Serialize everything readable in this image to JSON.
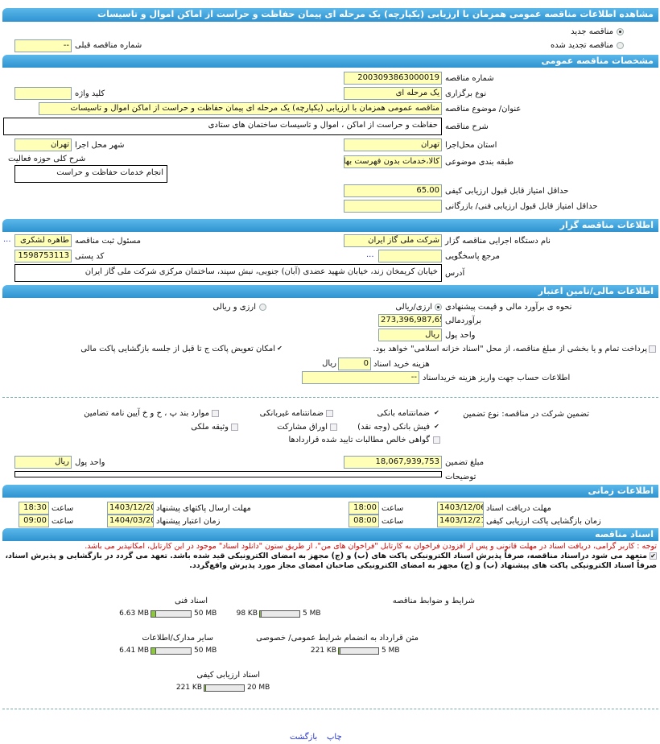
{
  "title": "مشاهده اطلاعات مناقصه عمومی همزمان با ارزیابی (یکپارچه) یک مرحله ای پیمان حفاظت و حراست از اماکن اموال و تاسیسات",
  "tender_kind": {
    "new": "مناقصه جدید",
    "renewed": "مناقصه تجدید شده",
    "selected": "new",
    "prev_number_label": "شماره مناقصه قبلی",
    "prev_number": "--"
  },
  "general": {
    "header": "مشخصات مناقصه عمومی",
    "number_label": "شماره مناقصه",
    "number": "2003093863000019",
    "type_label": "نوع برگزاری",
    "type": "یک مرحله ای",
    "keyword_label": "کلید واژه",
    "keyword": "",
    "subject_label": "عنوان/ موضوع مناقصه",
    "subject": "مناقصه عمومی همزمان با ارزیابی (یکپارچه) یک مرحله ای پیمان حفاظت و حراست از اماکن اموال و تاسیسات",
    "description_label": "شرح مناقصه",
    "description": "حفاظت و حراست از اماکن ، اموال و تاسیسات ساختمان های ستادی",
    "province_label": "استان محل‌اجرا",
    "province": "تهران",
    "city_label": "شهر محل اجرا",
    "city": "تهران",
    "category_label": "طبقه بندی موضوعی",
    "category": "کالا،خدمات بدون فهرست بها",
    "activity_label": "شرح کلی حوزه فعالیت",
    "activity": "انجام خدمات حفاظت و حراست",
    "min_quality_label": "حداقل امتیاز قابل قبول ارزیابی کیفی",
    "min_quality": "65.00",
    "min_tech_label": "حداقل امتیاز قابل قبول ارزیابی فنی/ بازرگانی",
    "min_tech": ""
  },
  "organizer": {
    "header": "اطلاعات مناقصه گزار",
    "org_label": "نام دستگاه اجرایی مناقصه گزار",
    "org": "شرکت ملی گاز ایران",
    "registrar_label": "مسئول ثبت مناقصه",
    "registrar": "طاهره لشکری",
    "ref_label": "مرجع پاسخگویی",
    "ref": "",
    "postal_label": "کد پستی",
    "postal": "1598753113",
    "address_label": "آدرس",
    "address": "خیابان کریمخان زند، خیابان شهید عضدی (آبان) جنوبی، نبش سپند، ساختمان مرکزی شرکت ملی گاز ایران",
    "more": "..."
  },
  "finance": {
    "header": "اطلاعات مالی/تامین اعتبار",
    "method_label": "نحوه ی برآورد مالی و قیمت پیشنهادی",
    "opt_rial": "ارزی/ریالی",
    "opt_both": "ارزی و ریالی",
    "selected": "opt_rial",
    "estimate_label": "برآوردمالی",
    "estimate": "273,396,987,650",
    "currency_label": "واحد پول",
    "currency": "ریال",
    "treasury": "پرداخت تمام و یا بخشی از مبلغ مناقصه، از محل \"اسناد خزانه اسلامی\" خواهد بود.",
    "treasury_checked": false,
    "swap": "امکان تعویض پاکت ج تا قبل از جلسه بازگشایی پاکت مالی",
    "swap_checked": true,
    "doc_cost_label": "هزینه خرید اسناد",
    "doc_cost": "0",
    "doc_cost_unit": "ریال",
    "account_label": "اطلاعات حساب جهت واریز هزینه خریداسناد",
    "account": "--"
  },
  "guarantee": {
    "label": "تضمین شرکت در مناقصه:   نوع تضمین",
    "options": [
      {
        "label": "ضمانتنامه بانکی",
        "checked": true
      },
      {
        "label": "ضمانتنامه غیربانکی",
        "checked": false
      },
      {
        "label": "موارد بند پ ، ح و خ آیین نامه تضامین",
        "checked": false
      },
      {
        "label": "فیش بانکی (وجه نقد)",
        "checked": true
      },
      {
        "label": "اوراق مشارکت",
        "checked": false
      },
      {
        "label": "وثیقه ملکی",
        "checked": false
      },
      {
        "label": "گواهی خالص مطالبات تایید شده قراردادها",
        "checked": false
      }
    ],
    "amount_label": "مبلغ تضمین",
    "amount": "18,067,939,753",
    "currency_label": "واحد پول",
    "currency": "ریال",
    "notes_label": "توضیحات",
    "notes": ""
  },
  "timing": {
    "header": "اطلاعات زمانی",
    "time_label": "ساعت",
    "doc_deadline_label": "مهلت دریافت اسناد",
    "doc_deadline_date": "1403/12/06",
    "doc_deadline_time": "18:00",
    "submit_label": "مهلت ارسال پاکتهای پیشنهاد",
    "submit_date": "1403/12/20",
    "submit_time": "18:30",
    "open_label": "زمان بازگشایی پاکت ارزیابی کیفی",
    "open_date": "1403/12/21",
    "open_time": "08:00",
    "validity_label": "زمان اعتبار پیشنهاد",
    "validity_date": "1404/03/20",
    "validity_time": "09:00"
  },
  "documents": {
    "header": "اسناد مناقصه",
    "note": "توجه : کاربر گرامی، دریافت اسناد در مهلت قانونی و پس از افزودن فراخوان به کارتابل \"فراخوان های من\"، از طریق ستون \"دانلود اسناد\" موجود در این کارتابل، امکانپذیر می باشد.",
    "commit_line1": "متعهد می شود دراسناد مناقصه، صرفاً پذیرش اسناد الکترونیکی پاکت های (ب) و (ج) مجهز به امضای الکترونیکی قید شده باشد. تعهد می گردد در بازگشایی و پذیرش اسناد،",
    "commit_line2": "صرفاً اسناد الکترونیکی پاکت های پیشنهاد (ب) و (ج) مجهز به امضای الکترونیکی صاحبان امضای مجاز مورد پذیرش واقع‌گردد.",
    "commit_checked": true,
    "files": [
      {
        "label": "شرایط و ضوابط مناقصه",
        "size": "98 KB",
        "max": "5 MB",
        "fill_percent": 2
      },
      {
        "label": "اسناد فنی",
        "size": "6.63 MB",
        "max": "50 MB",
        "fill_percent": 13
      },
      {
        "label": "متن قرارداد به انضمام شرایط عمومی/ خصوصی",
        "size": "221 KB",
        "max": "5 MB",
        "fill_percent": 4
      },
      {
        "label": "سایر مدارک/اطلاعات",
        "size": "6.41 MB",
        "max": "50 MB",
        "fill_percent": 13
      },
      {
        "label": "اسناد ارزیابی کیفی",
        "size": "221 KB",
        "max": "20 MB",
        "fill_percent": 1
      }
    ]
  },
  "footer": {
    "print": "چاپ",
    "back": "بازگشت"
  },
  "colors": {
    "header_blue": "#3a9fdc",
    "input_yellow": "#ffffb8",
    "note_red": "#dd0000",
    "progress_green": "#8dc63f",
    "link_blue": "#2233cc"
  }
}
